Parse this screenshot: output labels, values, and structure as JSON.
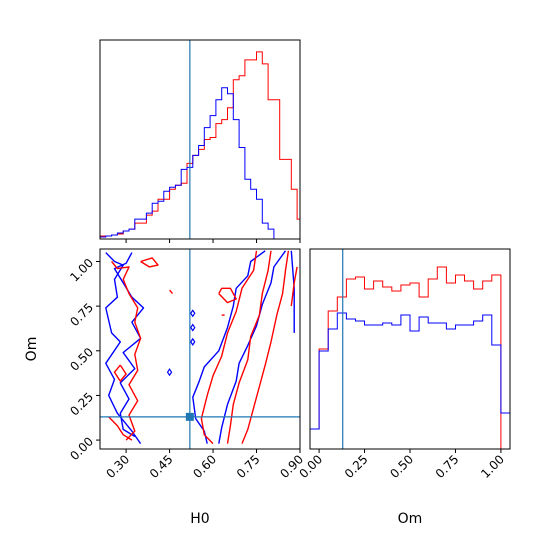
{
  "chart_data": {
    "type": "corner",
    "parameters": [
      "H0",
      "Om"
    ],
    "truth": {
      "H0": 0.52,
      "Om": 0.13,
      "color": "#1f77b4"
    },
    "series": [
      {
        "color": "#ff0000"
      },
      {
        "color": "#0000ff"
      }
    ],
    "panels": [
      {
        "id": "H0-marginal",
        "type": "histogram",
        "x_param": "H0",
        "xlim": [
          0.21,
          0.9
        ],
        "bin_edges": [
          0.21,
          0.23,
          0.25,
          0.27,
          0.29,
          0.31,
          0.33,
          0.35,
          0.37,
          0.39,
          0.41,
          0.43,
          0.45,
          0.47,
          0.49,
          0.51,
          0.53,
          0.55,
          0.57,
          0.59,
          0.61,
          0.63,
          0.65,
          0.67,
          0.69,
          0.71,
          0.73,
          0.75,
          0.77,
          0.79,
          0.81,
          0.83,
          0.85,
          0.87,
          0.89,
          0.9
        ],
        "series_values": [
          [
            0.015,
            0.015,
            0.02,
            0.025,
            0.04,
            0.05,
            0.08,
            0.08,
            0.12,
            0.14,
            0.2,
            0.2,
            0.25,
            0.27,
            0.28,
            0.38,
            0.42,
            0.45,
            0.5,
            0.51,
            0.58,
            0.6,
            0.66,
            0.8,
            0.82,
            0.9,
            0.9,
            0.94,
            0.88,
            0.7,
            0.7,
            0.4,
            0.4,
            0.25,
            0.1
          ],
          [
            0.01,
            0.015,
            0.02,
            0.03,
            0.04,
            0.05,
            0.1,
            0.1,
            0.13,
            0.18,
            0.19,
            0.24,
            0.26,
            0.27,
            0.35,
            0.36,
            0.42,
            0.47,
            0.56,
            0.62,
            0.7,
            0.76,
            0.73,
            0.6,
            0.46,
            0.3,
            0.25,
            0.2,
            0.08,
            0.05,
            0.0,
            0.0,
            0.0,
            0.0,
            0.0
          ]
        ],
        "ylim": [
          0,
          1.0
        ]
      },
      {
        "id": "Om-marginal",
        "type": "histogram",
        "x_param": "Om",
        "xlim": [
          -0.05,
          1.05
        ],
        "x_ticks": [
          "0.00",
          "0.25",
          "0.50",
          "0.75",
          "1.00"
        ],
        "bin_edges": [
          -0.05,
          0.0,
          0.05,
          0.1,
          0.15,
          0.2,
          0.25,
          0.3,
          0.35,
          0.4,
          0.45,
          0.5,
          0.55,
          0.6,
          0.65,
          0.7,
          0.75,
          0.8,
          0.85,
          0.9,
          0.95,
          1.0,
          1.05
        ],
        "series_values": [
          [
            0.1,
            0.5,
            0.69,
            0.76,
            0.85,
            0.86,
            0.8,
            0.84,
            0.81,
            0.79,
            0.82,
            0.83,
            0.76,
            0.85,
            0.91,
            0.83,
            0.87,
            0.84,
            0.8,
            0.84,
            0.87,
            0.0
          ],
          [
            0.1,
            0.49,
            0.6,
            0.68,
            0.65,
            0.64,
            0.62,
            0.62,
            0.63,
            0.62,
            0.67,
            0.59,
            0.66,
            0.63,
            0.63,
            0.6,
            0.62,
            0.62,
            0.64,
            0.67,
            0.52,
            0.18
          ]
        ],
        "ylim": [
          0,
          1.0
        ]
      },
      {
        "id": "H0-Om-2d",
        "type": "contour",
        "x_param": "H0",
        "y_param": "Om",
        "xlim": [
          0.21,
          0.9
        ],
        "ylim": [
          -0.05,
          1.07
        ],
        "x_ticks": [
          "0.30",
          "0.45",
          "0.60",
          "0.75",
          "0.90"
        ],
        "y_ticks": [
          "0.00",
          "0.25",
          "0.50",
          "0.75",
          "1.00"
        ],
        "xlabel": "H0",
        "ylabel": "Om",
        "contours": [
          {
            "series": 1,
            "points": [
              [
                0.23,
                1.05
              ],
              [
                0.26,
                1.0
              ],
              [
                0.29,
                0.98
              ],
              [
                0.26,
                0.9
              ],
              [
                0.27,
                0.8
              ],
              [
                0.23,
                0.74
              ],
              [
                0.25,
                0.6
              ],
              [
                0.28,
                0.55
              ],
              [
                0.23,
                0.43
              ],
              [
                0.26,
                0.34
              ],
              [
                0.24,
                0.25
              ],
              [
                0.27,
                0.15
              ],
              [
                0.32,
                0.05
              ],
              [
                0.35,
                -0.02
              ]
            ]
          },
          {
            "series": 1,
            "points": [
              [
                0.32,
                1.05
              ],
              [
                0.3,
                0.99
              ],
              [
                0.26,
                0.96
              ],
              [
                0.29,
                0.88
              ],
              [
                0.32,
                0.8
              ],
              [
                0.36,
                0.74
              ],
              [
                0.32,
                0.66
              ],
              [
                0.35,
                0.57
              ],
              [
                0.29,
                0.49
              ],
              [
                0.33,
                0.4
              ],
              [
                0.28,
                0.32
              ],
              [
                0.31,
                0.23
              ],
              [
                0.28,
                0.15
              ],
              [
                0.29,
                0.06
              ],
              [
                0.33,
                0.02
              ]
            ]
          },
          {
            "series": 1,
            "points": [
              [
                0.78,
                1.06
              ],
              [
                0.73,
                1.0
              ],
              [
                0.72,
                0.92
              ],
              [
                0.68,
                0.85
              ],
              [
                0.67,
                0.75
              ],
              [
                0.65,
                0.63
              ],
              [
                0.62,
                0.5
              ],
              [
                0.57,
                0.41
              ],
              [
                0.55,
                0.32
              ],
              [
                0.53,
                0.24
              ],
              [
                0.54,
                0.12
              ],
              [
                0.57,
                0.05
              ],
              [
                0.58,
                -0.02
              ]
            ]
          },
          {
            "series": 1,
            "points": [
              [
                0.85,
                1.06
              ],
              [
                0.81,
                0.97
              ],
              [
                0.8,
                0.88
              ],
              [
                0.77,
                0.76
              ],
              [
                0.75,
                0.64
              ],
              [
                0.72,
                0.53
              ],
              [
                0.69,
                0.43
              ],
              [
                0.68,
                0.33
              ],
              [
                0.65,
                0.2
              ],
              [
                0.63,
                0.07
              ],
              [
                0.62,
                -0.02
              ]
            ]
          },
          {
            "series": 1,
            "points": [
              [
                0.87,
                1.06
              ],
              [
                0.88,
                0.85
              ],
              [
                0.88,
                0.6
              ]
            ]
          },
          {
            "series": 0,
            "points": [
              [
                0.25,
                1.0
              ],
              [
                0.27,
                0.96
              ],
              [
                0.31,
                0.97
              ],
              [
                0.29,
                0.9
              ],
              [
                0.31,
                0.82
              ],
              [
                0.34,
                0.74
              ],
              [
                0.33,
                0.66
              ],
              [
                0.35,
                0.57
              ],
              [
                0.33,
                0.48
              ],
              [
                0.34,
                0.39
              ],
              [
                0.31,
                0.31
              ],
              [
                0.34,
                0.22
              ],
              [
                0.31,
                0.14
              ],
              [
                0.33,
                0.05
              ],
              [
                0.3,
                0.0
              ]
            ]
          },
          {
            "series": 0,
            "points": [
              [
                0.24,
                0.13
              ],
              [
                0.27,
                0.08
              ],
              [
                0.29,
                0.03
              ],
              [
                0.32,
                0.0
              ]
            ]
          },
          {
            "series": 0,
            "points": [
              [
                0.28,
                0.42
              ],
              [
                0.26,
                0.38
              ],
              [
                0.28,
                0.33
              ],
              [
                0.3,
                0.37
              ],
              [
                0.28,
                0.42
              ]
            ]
          },
          {
            "series": 0,
            "points": [
              [
                0.35,
                1.0
              ],
              [
                0.38,
                0.97
              ],
              [
                0.41,
                0.98
              ],
              [
                0.39,
                1.02
              ],
              [
                0.35,
                1.0
              ]
            ]
          },
          {
            "series": 0,
            "points": [
              [
                0.45,
                0.84
              ],
              [
                0.46,
                0.82
              ]
            ]
          },
          {
            "series": 0,
            "points": [
              [
                0.62,
                0.82
              ],
              [
                0.65,
                0.77
              ],
              [
                0.68,
                0.79
              ],
              [
                0.66,
                0.85
              ],
              [
                0.63,
                0.85
              ],
              [
                0.62,
                0.82
              ]
            ]
          },
          {
            "series": 0,
            "points": [
              [
                0.63,
                0.7
              ],
              [
                0.64,
                0.7
              ]
            ]
          },
          {
            "series": 0,
            "points": [
              [
                0.75,
                1.06
              ],
              [
                0.74,
                0.95
              ],
              [
                0.7,
                0.85
              ],
              [
                0.68,
                0.72
              ],
              [
                0.65,
                0.6
              ],
              [
                0.63,
                0.47
              ],
              [
                0.6,
                0.36
              ],
              [
                0.58,
                0.25
              ],
              [
                0.56,
                0.12
              ],
              [
                0.57,
                0.03
              ],
              [
                0.6,
                -0.02
              ]
            ]
          },
          {
            "series": 0,
            "points": [
              [
                0.8,
                1.06
              ],
              [
                0.79,
                0.95
              ],
              [
                0.77,
                0.82
              ],
              [
                0.76,
                0.7
              ],
              [
                0.73,
                0.58
              ],
              [
                0.72,
                0.45
              ],
              [
                0.69,
                0.32
              ],
              [
                0.67,
                0.2
              ],
              [
                0.66,
                0.08
              ],
              [
                0.65,
                -0.02
              ]
            ]
          },
          {
            "series": 0,
            "points": [
              [
                0.86,
                1.06
              ],
              [
                0.85,
                0.95
              ],
              [
                0.84,
                0.82
              ],
              [
                0.82,
                0.7
              ],
              [
                0.8,
                0.55
              ],
              [
                0.78,
                0.42
              ],
              [
                0.76,
                0.3
              ],
              [
                0.74,
                0.18
              ],
              [
                0.72,
                0.06
              ],
              [
                0.7,
                -0.02
              ]
            ]
          },
          {
            "series": 0,
            "points": [
              [
                0.89,
                0.97
              ],
              [
                0.88,
                0.88
              ],
              [
                0.87,
                0.75
              ]
            ]
          }
        ],
        "small_blue_marks": [
          [
            0.53,
            0.71
          ],
          [
            0.53,
            0.63
          ],
          [
            0.53,
            0.55
          ],
          [
            0.45,
            0.38
          ]
        ]
      }
    ]
  }
}
